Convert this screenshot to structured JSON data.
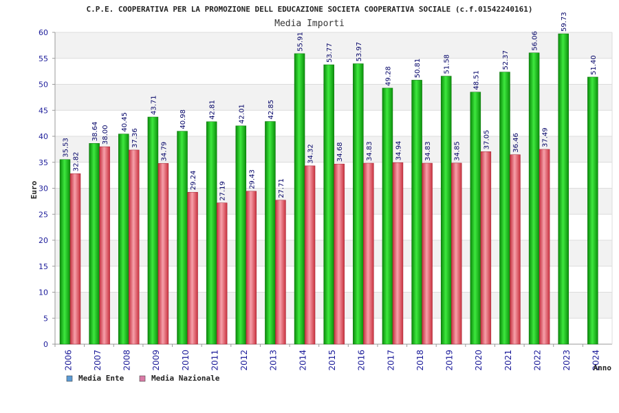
{
  "chart_data": {
    "type": "bar",
    "title": "C.P.E. COOPERATIVA PER LA PROMOZIONE DELL EDUCAZIONE SOCIETA COOPERATIVA SOCIALE (c.f.01542240161)",
    "subtitle": "Media Importi",
    "xlabel": "Anno",
    "ylabel": "Euro",
    "ylim": [
      0,
      60
    ],
    "yticks": [
      0,
      5,
      10,
      15,
      20,
      25,
      30,
      35,
      40,
      45,
      50,
      55,
      60
    ],
    "grid": true,
    "legend_position": "bottom-left",
    "categories": [
      "2006",
      "2007",
      "2008",
      "2009",
      "2010",
      "2011",
      "2012",
      "2013",
      "2014",
      "2015",
      "2016",
      "2017",
      "2018",
      "2019",
      "2020",
      "2021",
      "2022",
      "2023",
      "2024"
    ],
    "value_labels_ente": [
      "35.53",
      "38.64",
      "40.45",
      "43.71",
      "40.98",
      "42.81",
      "42.01",
      "42.85",
      "55.91",
      "53.77",
      "53.97",
      "49.28",
      "50.81",
      "51.58",
      "48.51",
      "52.37",
      "56.06",
      "59.73",
      "51.40"
    ],
    "value_labels_nazionale": [
      "32.82",
      "38.00",
      "37.36",
      "34.79",
      "29.24",
      "27.19",
      "29.43",
      "27.71",
      "34.32",
      "34.68",
      "34.83",
      "34.94",
      "34.83",
      "34.85",
      "37.05",
      "36.46",
      "37.49",
      null,
      null
    ],
    "series": [
      {
        "name": "Media Ente",
        "legend_color": "#5b9bd5",
        "bar_color": "#18b418",
        "values": [
          35.53,
          38.64,
          40.45,
          43.71,
          40.98,
          42.81,
          42.01,
          42.85,
          55.91,
          53.77,
          53.97,
          49.28,
          50.81,
          51.58,
          48.51,
          52.37,
          56.06,
          59.73,
          51.4
        ]
      },
      {
        "name": "Media Nazionale",
        "legend_color": "#d97aa6",
        "bar_color": "#e0485a",
        "values": [
          32.82,
          38.0,
          37.36,
          34.79,
          29.24,
          27.19,
          29.43,
          27.71,
          34.32,
          34.68,
          34.83,
          34.94,
          34.83,
          34.85,
          37.05,
          36.46,
          37.49,
          null,
          null
        ]
      }
    ]
  }
}
